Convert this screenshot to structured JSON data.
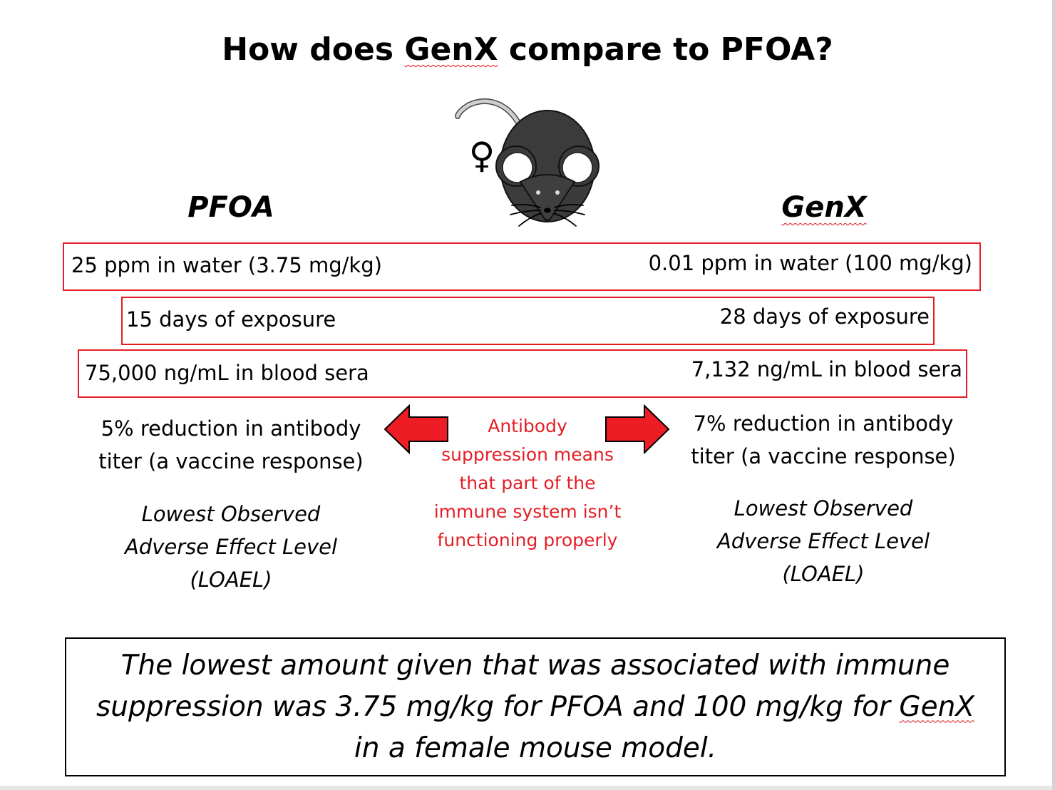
{
  "title": {
    "before": "How does ",
    "emph": "GenX",
    "after": " compare to PFOA?"
  },
  "female_symbol": "♀",
  "pfoa": {
    "heading": "PFOA",
    "dose": "25 ppm in water (3.75 mg/kg)",
    "duration": "15 days of exposure",
    "serum": "75,000 ng/mL in blood sera",
    "effect_line1": "5% reduction in antibody",
    "effect_line2": "titer (a vaccine response)",
    "loael_line1": "Lowest Observed",
    "loael_line2": "Adverse Effect Level",
    "loael_line3": "(LOAEL)"
  },
  "genx": {
    "heading": "GenX",
    "dose": "0.01 ppm in water (100 mg/kg)",
    "duration": "28 days of exposure",
    "serum": "7,132 ng/mL in blood sera",
    "effect_line1": "7% reduction in antibody",
    "effect_line2": "titer (a vaccine response)",
    "loael_line1": "Lowest Observed",
    "loael_line2": "Adverse Effect Level",
    "loael_line3": "(LOAEL)"
  },
  "note": {
    "line1": "Antibody",
    "line2": "suppression means",
    "line3": "that part of the",
    "line4": "immune system isn’t",
    "line5": "functioning properly"
  },
  "conclusion": {
    "line1": "The lowest amount given that was associated with immune",
    "line2a": "suppression was 3.75 mg/kg for PFOA and 100 mg/kg for ",
    "line2b": "GenX",
    "line3": "in a female mouse model."
  },
  "colors": {
    "accent_red": "#e41e26",
    "mouse_body": "#3a3a3a"
  }
}
